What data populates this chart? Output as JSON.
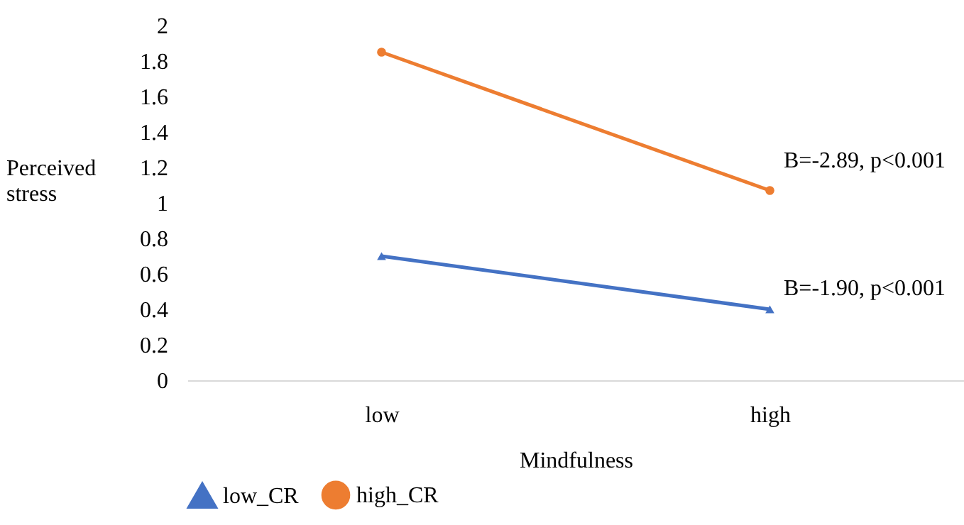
{
  "chart_data": {
    "type": "line",
    "xlabel": "Mindfulness",
    "ylabel": "Perceived stress",
    "categories": [
      "low",
      "high"
    ],
    "series": [
      {
        "name": "low_CR",
        "color": "#4472c4",
        "marker": "triangle",
        "values": [
          0.7,
          0.4
        ]
      },
      {
        "name": "high_CR",
        "color": "#ed7d31",
        "marker": "circle",
        "values": [
          1.85,
          1.07
        ]
      }
    ],
    "ylim": [
      0,
      2
    ],
    "yticks": [
      0,
      0.2,
      0.4,
      0.6,
      0.8,
      1,
      1.2,
      1.4,
      1.6,
      1.8,
      2
    ],
    "annotations": [
      "B=-2.89, p<0.001",
      "B=-1.90, p<0.001"
    ],
    "grid": false,
    "legend": "bottom"
  }
}
